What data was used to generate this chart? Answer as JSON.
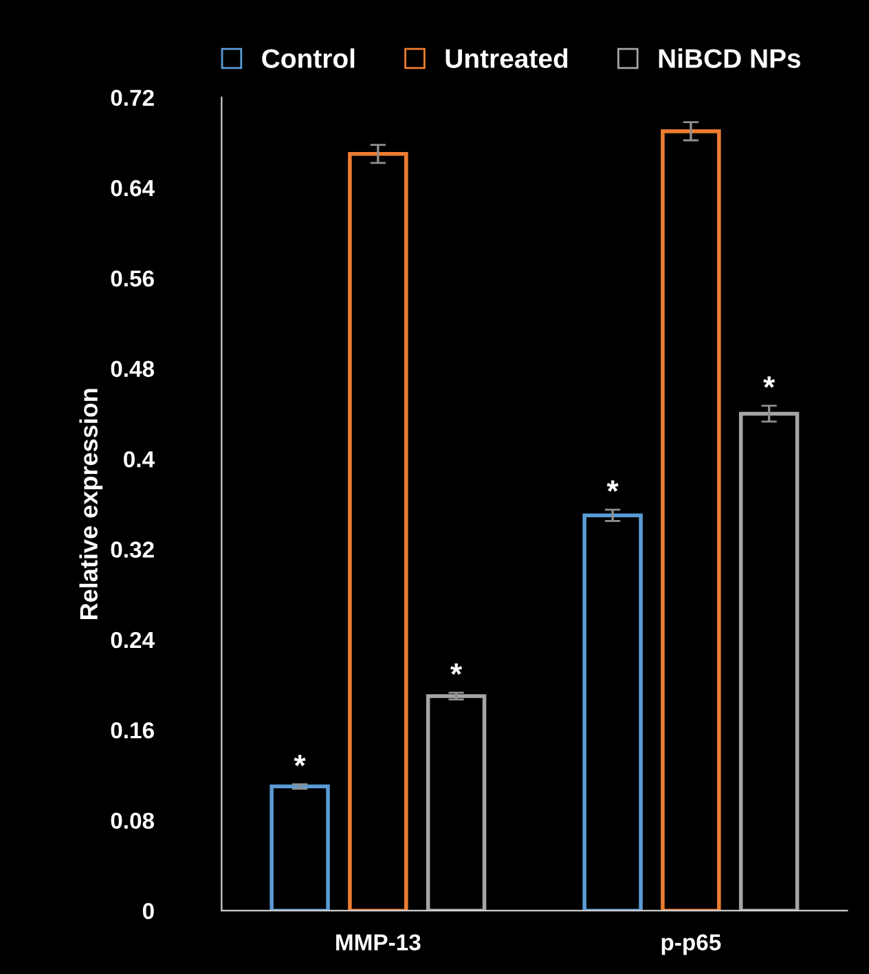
{
  "chart_data": {
    "type": "bar",
    "ylabel": "Relative expression",
    "categories": [
      "MMP-13",
      "p-p65"
    ],
    "series": [
      {
        "name": "Control",
        "color": "#5b9bd5",
        "values": [
          0.11,
          0.35
        ],
        "errors": [
          0.002,
          0.005
        ],
        "value_labels": [
          "*",
          "*"
        ]
      },
      {
        "name": "Untreated",
        "color": "#ed7d31",
        "values": [
          0.67,
          0.69
        ],
        "errors": [
          0.008,
          0.008
        ],
        "value_labels": [
          null,
          null
        ]
      },
      {
        "name": "NiBCD NPs",
        "color": "#a5a5a5",
        "values": [
          0.19,
          0.44
        ],
        "errors": [
          0.003,
          0.007
        ],
        "value_labels": [
          "*",
          "*"
        ]
      }
    ],
    "ylim": [
      0,
      0.72
    ],
    "yticks": [
      0,
      0.08,
      0.16,
      0.24,
      0.32,
      0.4,
      0.48,
      0.56,
      0.64,
      0.72
    ],
    "grid": false,
    "legend": "top"
  }
}
